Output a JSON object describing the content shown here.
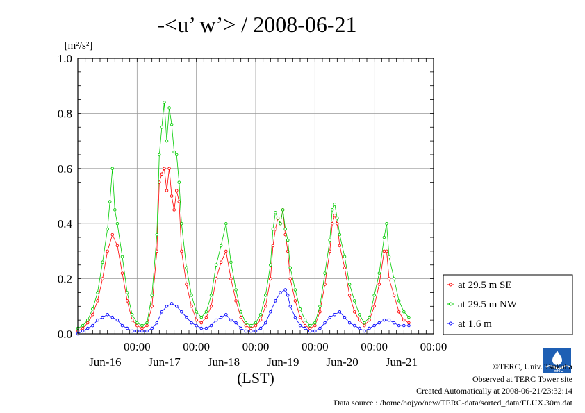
{
  "chart_data": {
    "type": "line",
    "title": "-<u’ w’> / 2008-06-21",
    "ylabel": "[m²/s²]",
    "xlabel": "(LST)",
    "ylim": [
      0,
      1.0
    ],
    "yticks": [
      "0.0",
      "0.2",
      "0.4",
      "0.6",
      "0.8",
      "1.0"
    ],
    "grid": true,
    "legend_position": "right",
    "x_range_hours": [
      0,
      144
    ],
    "x_major_ticks": [
      {
        "time_label": "00:00",
        "date_label": "Jun-16",
        "hour": 24
      },
      {
        "time_label": "00:00",
        "date_label": "Jun-17",
        "hour": 48
      },
      {
        "time_label": "00:00",
        "date_label": "Jun-18",
        "hour": 72
      },
      {
        "time_label": "00:00",
        "date_label": "Jun-19",
        "hour": 96
      },
      {
        "time_label": "00:00",
        "date_label": "Jun-20",
        "hour": 120
      },
      {
        "time_label": "00:00",
        "date_label": "Jun-21",
        "hour": 144
      }
    ],
    "series": [
      {
        "name": "at 29.5 m SE",
        "color": "#ff0000",
        "points": [
          [
            0,
            0.01
          ],
          [
            2,
            0.02
          ],
          [
            4,
            0.04
          ],
          [
            6,
            0.07
          ],
          [
            8,
            0.12
          ],
          [
            10,
            0.2
          ],
          [
            12,
            0.3
          ],
          [
            14,
            0.36
          ],
          [
            16,
            0.32
          ],
          [
            18,
            0.22
          ],
          [
            20,
            0.12
          ],
          [
            22,
            0.05
          ],
          [
            24,
            0.03
          ],
          [
            26,
            0.02
          ],
          [
            28,
            0.03
          ],
          [
            30,
            0.1
          ],
          [
            32,
            0.3
          ],
          [
            33,
            0.55
          ],
          [
            34,
            0.58
          ],
          [
            35,
            0.6
          ],
          [
            36,
            0.52
          ],
          [
            37,
            0.6
          ],
          [
            38,
            0.5
          ],
          [
            39,
            0.45
          ],
          [
            40,
            0.52
          ],
          [
            41,
            0.48
          ],
          [
            42,
            0.3
          ],
          [
            44,
            0.18
          ],
          [
            46,
            0.1
          ],
          [
            48,
            0.05
          ],
          [
            50,
            0.04
          ],
          [
            52,
            0.06
          ],
          [
            54,
            0.1
          ],
          [
            56,
            0.2
          ],
          [
            58,
            0.26
          ],
          [
            60,
            0.3
          ],
          [
            62,
            0.2
          ],
          [
            64,
            0.12
          ],
          [
            66,
            0.06
          ],
          [
            68,
            0.03
          ],
          [
            70,
            0.02
          ],
          [
            72,
            0.03
          ],
          [
            74,
            0.05
          ],
          [
            76,
            0.1
          ],
          [
            78,
            0.2
          ],
          [
            79,
            0.32
          ],
          [
            80,
            0.38
          ],
          [
            81,
            0.42
          ],
          [
            82,
            0.4
          ],
          [
            83,
            0.45
          ],
          [
            84,
            0.36
          ],
          [
            85,
            0.3
          ],
          [
            86,
            0.2
          ],
          [
            88,
            0.12
          ],
          [
            90,
            0.06
          ],
          [
            92,
            0.03
          ],
          [
            94,
            0.02
          ],
          [
            96,
            0.03
          ],
          [
            98,
            0.08
          ],
          [
            100,
            0.18
          ],
          [
            102,
            0.3
          ],
          [
            103,
            0.4
          ],
          [
            104,
            0.43
          ],
          [
            105,
            0.4
          ],
          [
            106,
            0.32
          ],
          [
            108,
            0.24
          ],
          [
            110,
            0.14
          ],
          [
            112,
            0.08
          ],
          [
            114,
            0.05
          ],
          [
            116,
            0.03
          ],
          [
            118,
            0.05
          ],
          [
            120,
            0.1
          ],
          [
            122,
            0.18
          ],
          [
            124,
            0.3
          ],
          [
            125,
            0.3
          ],
          [
            126,
            0.2
          ],
          [
            128,
            0.14
          ],
          [
            130,
            0.08
          ],
          [
            132,
            0.05
          ],
          [
            134,
            0.04
          ]
        ]
      },
      {
        "name": "at 29.5 m NW",
        "color": "#00cc00",
        "points": [
          [
            0,
            0.02
          ],
          [
            2,
            0.03
          ],
          [
            4,
            0.05
          ],
          [
            6,
            0.09
          ],
          [
            8,
            0.15
          ],
          [
            10,
            0.26
          ],
          [
            12,
            0.38
          ],
          [
            13,
            0.48
          ],
          [
            14,
            0.6
          ],
          [
            15,
            0.45
          ],
          [
            16,
            0.4
          ],
          [
            18,
            0.28
          ],
          [
            20,
            0.15
          ],
          [
            22,
            0.07
          ],
          [
            24,
            0.04
          ],
          [
            26,
            0.03
          ],
          [
            28,
            0.04
          ],
          [
            30,
            0.14
          ],
          [
            32,
            0.36
          ],
          [
            33,
            0.65
          ],
          [
            34,
            0.75
          ],
          [
            35,
            0.84
          ],
          [
            36,
            0.7
          ],
          [
            37,
            0.82
          ],
          [
            38,
            0.76
          ],
          [
            39,
            0.66
          ],
          [
            40,
            0.65
          ],
          [
            41,
            0.55
          ],
          [
            42,
            0.4
          ],
          [
            44,
            0.24
          ],
          [
            46,
            0.14
          ],
          [
            48,
            0.08
          ],
          [
            50,
            0.06
          ],
          [
            52,
            0.08
          ],
          [
            54,
            0.14
          ],
          [
            56,
            0.25
          ],
          [
            58,
            0.32
          ],
          [
            60,
            0.4
          ],
          [
            62,
            0.26
          ],
          [
            64,
            0.16
          ],
          [
            66,
            0.08
          ],
          [
            68,
            0.04
          ],
          [
            70,
            0.03
          ],
          [
            72,
            0.04
          ],
          [
            74,
            0.07
          ],
          [
            76,
            0.14
          ],
          [
            78,
            0.25
          ],
          [
            79,
            0.38
          ],
          [
            80,
            0.44
          ],
          [
            81,
            0.42
          ],
          [
            82,
            0.4
          ],
          [
            83,
            0.45
          ],
          [
            84,
            0.38
          ],
          [
            85,
            0.34
          ],
          [
            86,
            0.24
          ],
          [
            88,
            0.16
          ],
          [
            90,
            0.09
          ],
          [
            92,
            0.05
          ],
          [
            94,
            0.03
          ],
          [
            96,
            0.04
          ],
          [
            98,
            0.1
          ],
          [
            100,
            0.22
          ],
          [
            102,
            0.34
          ],
          [
            103,
            0.45
          ],
          [
            104,
            0.47
          ],
          [
            105,
            0.42
          ],
          [
            106,
            0.36
          ],
          [
            108,
            0.28
          ],
          [
            110,
            0.18
          ],
          [
            112,
            0.12
          ],
          [
            114,
            0.07
          ],
          [
            116,
            0.04
          ],
          [
            118,
            0.06
          ],
          [
            120,
            0.14
          ],
          [
            122,
            0.22
          ],
          [
            124,
            0.35
          ],
          [
            125,
            0.4
          ],
          [
            126,
            0.28
          ],
          [
            128,
            0.2
          ],
          [
            130,
            0.12
          ],
          [
            132,
            0.08
          ],
          [
            134,
            0.06
          ]
        ]
      },
      {
        "name": "at 1.6 m",
        "color": "#0000ff",
        "points": [
          [
            0,
            0.0
          ],
          [
            2,
            0.01
          ],
          [
            4,
            0.02
          ],
          [
            6,
            0.03
          ],
          [
            8,
            0.05
          ],
          [
            10,
            0.06
          ],
          [
            12,
            0.07
          ],
          [
            14,
            0.06
          ],
          [
            16,
            0.05
          ],
          [
            18,
            0.03
          ],
          [
            20,
            0.02
          ],
          [
            22,
            0.01
          ],
          [
            24,
            0.01
          ],
          [
            26,
            0.01
          ],
          [
            28,
            0.01
          ],
          [
            30,
            0.02
          ],
          [
            32,
            0.04
          ],
          [
            34,
            0.08
          ],
          [
            36,
            0.1
          ],
          [
            38,
            0.11
          ],
          [
            40,
            0.1
          ],
          [
            42,
            0.08
          ],
          [
            44,
            0.06
          ],
          [
            46,
            0.04
          ],
          [
            48,
            0.03
          ],
          [
            50,
            0.02
          ],
          [
            52,
            0.02
          ],
          [
            54,
            0.03
          ],
          [
            56,
            0.05
          ],
          [
            58,
            0.06
          ],
          [
            60,
            0.07
          ],
          [
            62,
            0.05
          ],
          [
            64,
            0.04
          ],
          [
            66,
            0.02
          ],
          [
            68,
            0.01
          ],
          [
            70,
            0.01
          ],
          [
            72,
            0.01
          ],
          [
            74,
            0.02
          ],
          [
            76,
            0.04
          ],
          [
            78,
            0.08
          ],
          [
            80,
            0.12
          ],
          [
            82,
            0.15
          ],
          [
            84,
            0.16
          ],
          [
            85,
            0.14
          ],
          [
            86,
            0.1
          ],
          [
            88,
            0.06
          ],
          [
            90,
            0.03
          ],
          [
            92,
            0.02
          ],
          [
            94,
            0.01
          ],
          [
            96,
            0.01
          ],
          [
            98,
            0.02
          ],
          [
            100,
            0.04
          ],
          [
            102,
            0.06
          ],
          [
            104,
            0.07
          ],
          [
            106,
            0.08
          ],
          [
            108,
            0.06
          ],
          [
            110,
            0.04
          ],
          [
            112,
            0.03
          ],
          [
            114,
            0.02
          ],
          [
            116,
            0.01
          ],
          [
            118,
            0.02
          ],
          [
            120,
            0.03
          ],
          [
            122,
            0.04
          ],
          [
            124,
            0.05
          ],
          [
            126,
            0.05
          ],
          [
            128,
            0.04
          ],
          [
            130,
            0.03
          ],
          [
            132,
            0.03
          ],
          [
            134,
            0.03
          ]
        ]
      }
    ]
  },
  "credits": {
    "copyright": "©TERC, Univ. Tsukuba",
    "observed": "Observed at TERC Tower site",
    "created": "Created Automatically at 2008-06-21/23:32:14",
    "source": "Data source : /home/hojyo/new/TERC-data/sorted_data/FLUX.30m.dat"
  },
  "logo": {
    "text": "TERC"
  }
}
